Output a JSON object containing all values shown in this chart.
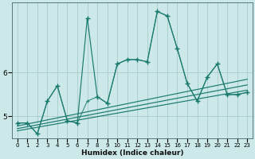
{
  "xlabel": "Humidex (Indice chaleur)",
  "bg_color": "#cce8e8",
  "line_color": "#1a7a6e",
  "grid_color": "#aacccc",
  "xlim": [
    -0.5,
    23.5
  ],
  "ylim": [
    4.5,
    7.6
  ],
  "yticks": [
    5,
    6
  ],
  "xticks": [
    0,
    1,
    2,
    3,
    4,
    5,
    6,
    7,
    8,
    9,
    10,
    11,
    12,
    13,
    14,
    15,
    16,
    17,
    18,
    19,
    20,
    21,
    22,
    23
  ],
  "main_x": [
    0,
    1,
    2,
    3,
    4,
    5,
    6,
    7,
    8,
    9,
    10,
    11,
    12,
    13,
    14,
    15,
    16,
    17,
    18,
    19,
    20,
    21,
    22,
    23
  ],
  "main_y": [
    4.85,
    4.85,
    4.6,
    5.35,
    5.7,
    4.9,
    4.85,
    7.25,
    5.45,
    5.3,
    6.2,
    6.3,
    6.3,
    6.25,
    7.4,
    7.3,
    6.55,
    5.75,
    5.35,
    5.9,
    6.2,
    5.5,
    5.5,
    5.55
  ],
  "line2_x": [
    0,
    1,
    2,
    3,
    4,
    5,
    6,
    7,
    8,
    9,
    10,
    11,
    12,
    13,
    14,
    15,
    16,
    17,
    18,
    19,
    20,
    21,
    22,
    23
  ],
  "line2_y": [
    4.85,
    4.85,
    4.6,
    5.35,
    5.7,
    4.9,
    4.85,
    5.35,
    5.45,
    5.3,
    6.2,
    6.3,
    6.3,
    6.25,
    7.4,
    7.3,
    6.55,
    5.75,
    5.35,
    5.9,
    6.2,
    5.5,
    5.5,
    5.55
  ],
  "trend1_x": [
    0,
    23
  ],
  "trend1_y": [
    4.78,
    5.85
  ],
  "trend2_x": [
    0,
    23
  ],
  "trend2_y": [
    4.72,
    5.72
  ],
  "trend3_x": [
    0,
    23
  ],
  "trend3_y": [
    4.67,
    5.6
  ]
}
